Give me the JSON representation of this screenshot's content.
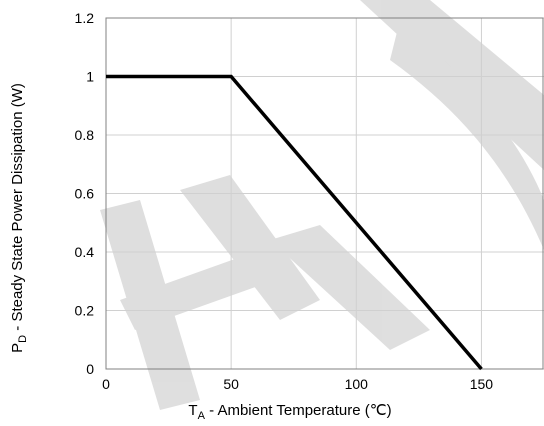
{
  "chart_data": {
    "type": "line",
    "title": "",
    "xlabel_prefix": "T",
    "xlabel_sub": "A",
    "xlabel_rest": " - Ambient Temperature (℃)",
    "ylabel_prefix": "P",
    "ylabel_sub": "D",
    "ylabel_rest": " - Steady State Power Dissipation (W)",
    "xlim": [
      0,
      175
    ],
    "ylim": [
      0,
      1.2
    ],
    "x_ticks": [
      0,
      50,
      100,
      150
    ],
    "x_tick_labels": [
      "0",
      "50",
      "100",
      "150"
    ],
    "y_ticks": [
      0,
      0.2,
      0.4,
      0.6,
      0.8,
      1,
      1.2
    ],
    "y_tick_labels": [
      "0",
      "0.2",
      "0.4",
      "0.6",
      "0.8",
      "1",
      "1.2"
    ],
    "grid": true,
    "series": [
      {
        "x": [
          0,
          50,
          150
        ],
        "y": [
          1,
          1,
          0
        ]
      }
    ],
    "colors": {
      "line": "#000000",
      "grid": "#d0d0d0",
      "watermark": "#d9d9d9"
    }
  }
}
